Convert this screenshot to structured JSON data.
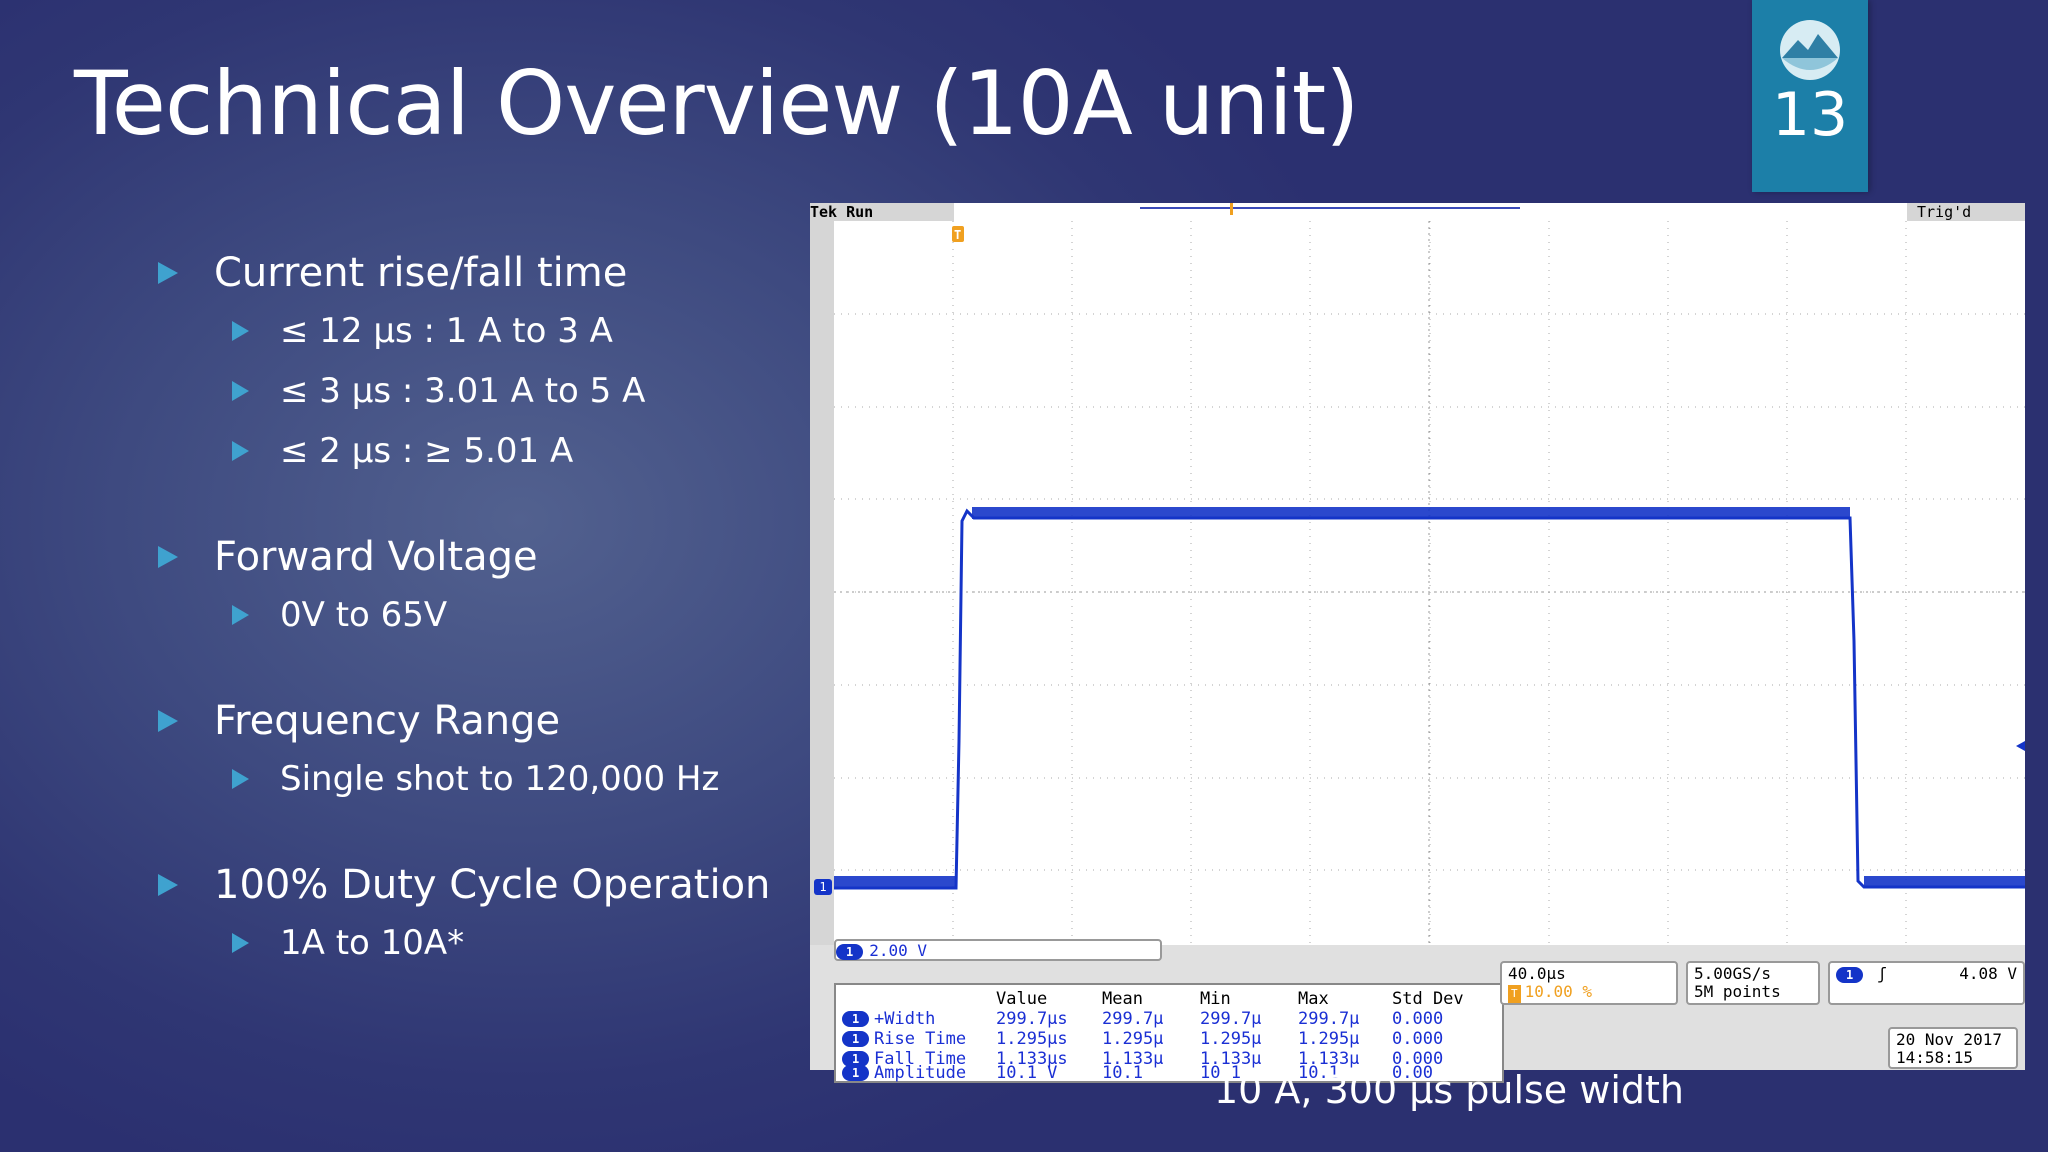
{
  "slide": {
    "title": "Technical Overview (10A unit)",
    "page_number": "13",
    "caption": "10 A, 300 µs pulse width"
  },
  "bullets": [
    {
      "text": "Current rise/fall time",
      "sub": [
        "≤ 12 µs : 1 A to 3 A",
        "≤ 3 µs : 3.01 A to  5 A",
        "≤ 2 µs : ≥ 5.01 A"
      ]
    },
    {
      "text": "Forward Voltage",
      "sub": [
        "0V to 65V"
      ]
    },
    {
      "text": "Frequency Range",
      "sub": [
        "Single shot to 120,000 Hz"
      ]
    },
    {
      "text": "100% Duty Cycle Operation",
      "sub": [
        "1A to 10A*"
      ]
    }
  ],
  "scope": {
    "brand": "Tek",
    "status": "Run",
    "trigger_status": "Trig'd",
    "trigger_marker": "T",
    "ch1_marker": "1",
    "ch1_scale": "2.00 V",
    "timebase": "40.0µs",
    "trigger_pos": "10.00 %",
    "sample_rate": "5.00GS/s",
    "record_length": "5M points",
    "trigger_level": "4.08 V",
    "date": "20 Nov 2017",
    "time": "14:58:15",
    "measure_headers": [
      "",
      "Value",
      "Mean",
      "Min",
      "Max",
      "Std Dev"
    ],
    "measurements": [
      {
        "name": "+Width",
        "value": "299.7µs",
        "mean": "299.7µ",
        "min": "299.7µ",
        "max": "299.7µ",
        "std": "0.000"
      },
      {
        "name": "Rise Time",
        "value": "1.295µs",
        "mean": "1.295µ",
        "min": "1.295µ",
        "max": "1.295µ",
        "std": "0.000"
      },
      {
        "name": "Fall Time",
        "value": "1.133µs",
        "mean": "1.133µ",
        "min": "1.133µ",
        "max": "1.133µ",
        "std": "0.000"
      },
      {
        "name": "Amplitude",
        "value": "10.1 V",
        "mean": "10.1",
        "min": "10.1",
        "max": "10.1",
        "std": "0.00"
      }
    ],
    "colors": {
      "trace": "#1434c8",
      "trigger": "#f0a020",
      "panel": "#e0e0e0"
    }
  }
}
